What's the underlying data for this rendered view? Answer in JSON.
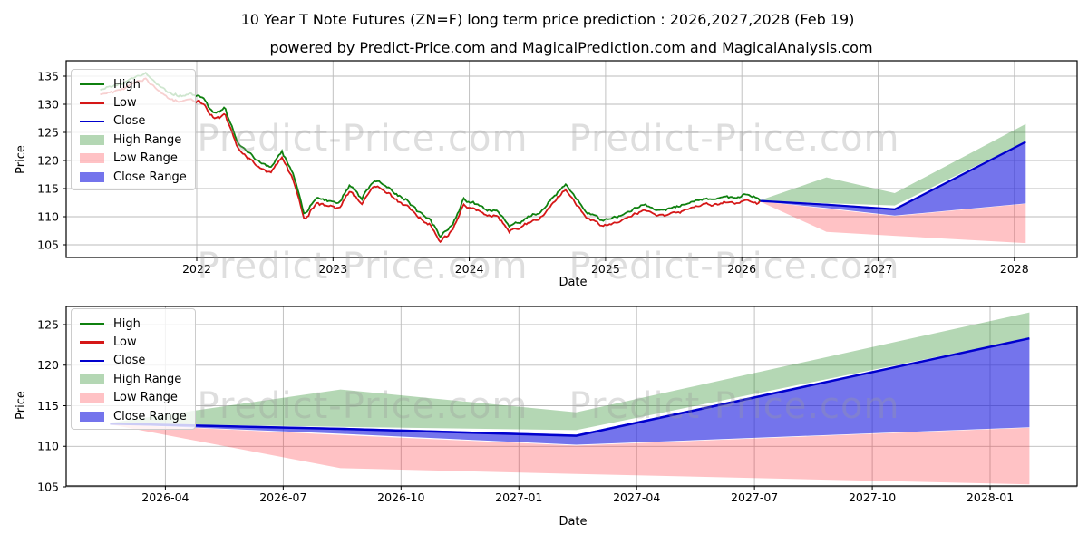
{
  "page": {
    "title": "10 Year T Note Futures (ZN=F) long term price prediction : 2026,2027,2028 (Feb 19)",
    "subtitle": "powered by Predict-Price.com and MagicalPrediction.com and MagicalAnalysis.com",
    "watermark": "Predict-Price.com"
  },
  "colors": {
    "high_line": "#0f800f",
    "low_line": "#d51717",
    "close_line": "#0000cd",
    "high_range_fill": "rgba(34,139,34,0.34)",
    "low_range_fill": "rgba(255,30,40,0.27)",
    "close_range_fill": "rgba(30,30,225,0.62)",
    "grid": "#bbbbbb",
    "spine": "#000000",
    "watermark": "#9a9a9a"
  },
  "legend": {
    "items": [
      {
        "label": "High",
        "swatch": "line",
        "color": "#0f800f"
      },
      {
        "label": "Low",
        "swatch": "line",
        "color": "#d51717"
      },
      {
        "label": "Close",
        "swatch": "line",
        "color": "#0000cd"
      },
      {
        "label": "High Range",
        "swatch": "patch",
        "color": "rgba(34,139,34,0.34)"
      },
      {
        "label": "Low Range",
        "swatch": "patch",
        "color": "rgba(255,30,40,0.27)"
      },
      {
        "label": "Close Range",
        "swatch": "patch",
        "color": "rgba(30,30,225,0.62)"
      }
    ]
  },
  "chart_data": {
    "type": "line",
    "title": "10 Year T Note Futures (ZN=F) long term price prediction : 2026,2027,2028 (Feb 19)",
    "history": {
      "dates": [
        "2021-04",
        "2021-05",
        "2021-06",
        "2021-07",
        "2021-08",
        "2021-09",
        "2021-10",
        "2021-11",
        "2021-12",
        "2022-01",
        "2022-02",
        "2022-03",
        "2022-04",
        "2022-05",
        "2022-06",
        "2022-07",
        "2022-08",
        "2022-09",
        "2022-10",
        "2022-11",
        "2022-12",
        "2023-01",
        "2023-02",
        "2023-03",
        "2023-04",
        "2023-05",
        "2023-06",
        "2023-07",
        "2023-08",
        "2023-09",
        "2023-10",
        "2023-11",
        "2023-12",
        "2024-01",
        "2024-02",
        "2024-03",
        "2024-04",
        "2024-05",
        "2024-06",
        "2024-07",
        "2024-08",
        "2024-09",
        "2024-10",
        "2024-11",
        "2024-12",
        "2025-01",
        "2025-02",
        "2025-03",
        "2025-04",
        "2025-05",
        "2025-06",
        "2025-07",
        "2025-08",
        "2025-09",
        "2025-10",
        "2025-11",
        "2025-12",
        "2026-01",
        "2026-02"
      ],
      "high": [
        132.6,
        133.0,
        133.6,
        134.7,
        135.4,
        133.6,
        132.0,
        131.4,
        131.8,
        131.0,
        128.2,
        129.0,
        123.6,
        121.4,
        119.8,
        118.4,
        121.6,
        117.2,
        110.2,
        113.4,
        112.6,
        112.2,
        115.6,
        113.0,
        116.4,
        115.8,
        113.8,
        112.8,
        110.8,
        109.6,
        106.3,
        108.6,
        112.8,
        112.2,
        111.0,
        110.9,
        108.1,
        109.0,
        110.0,
        111.1,
        113.6,
        115.7,
        112.8,
        110.6,
        109.3,
        109.6,
        110.1,
        111.3,
        112.1,
        110.9,
        111.3,
        111.7,
        112.6,
        113.1,
        113.1,
        113.6,
        113.3,
        113.8,
        113.2
      ],
      "low": [
        131.8,
        132.2,
        132.8,
        133.9,
        134.6,
        132.8,
        131.2,
        130.6,
        131.0,
        130.2,
        127.4,
        128.2,
        122.8,
        120.6,
        119.0,
        117.6,
        120.8,
        116.4,
        109.4,
        112.6,
        111.8,
        111.4,
        114.8,
        112.2,
        115.6,
        115.0,
        113.0,
        112.0,
        110.0,
        108.8,
        105.5,
        107.8,
        112.0,
        111.4,
        110.2,
        110.1,
        107.3,
        108.2,
        109.2,
        110.3,
        112.8,
        114.9,
        112.0,
        109.8,
        108.5,
        108.8,
        109.3,
        110.5,
        111.3,
        110.1,
        110.5,
        110.9,
        111.8,
        112.3,
        112.3,
        112.8,
        112.5,
        113.0,
        112.4
      ]
    },
    "forecast": {
      "dates": [
        "2026-02-19",
        "2026-08-15",
        "2027-02-15",
        "2028-02-01"
      ],
      "close": [
        112.8,
        112.15,
        111.3,
        123.3
      ],
      "high_range_upper": [
        112.9,
        117.0,
        114.2,
        126.5
      ],
      "high_range_lower": [
        112.85,
        112.4,
        112.0,
        123.35
      ],
      "low_range_upper": [
        112.75,
        111.4,
        110.1,
        112.3
      ],
      "low_range_lower": [
        112.7,
        107.3,
        106.6,
        105.3
      ],
      "close_range_upper": [
        112.85,
        112.3,
        111.45,
        123.35
      ],
      "close_range_lower": [
        112.75,
        111.55,
        110.2,
        112.35
      ]
    },
    "charts": [
      {
        "name": "full-history-with-forecast",
        "xlabel": "Date",
        "ylabel": "Price",
        "xticks": [
          "2022",
          "2023",
          "2024",
          "2025",
          "2026",
          "2027",
          "2028"
        ],
        "yticks": [
          105,
          110,
          115,
          120,
          125,
          130,
          135
        ],
        "ylim": [
          102.7,
          137.7
        ]
      },
      {
        "name": "forecast-zoom",
        "xlabel": "Date",
        "ylabel": "Price",
        "xticks": [
          "2026-04",
          "2026-07",
          "2026-10",
          "2027-01",
          "2027-04",
          "2027-07",
          "2027-10",
          "2028-01"
        ],
        "yticks": [
          105,
          110,
          115,
          120,
          125
        ],
        "ylim": [
          105.0,
          127.2
        ]
      }
    ]
  }
}
